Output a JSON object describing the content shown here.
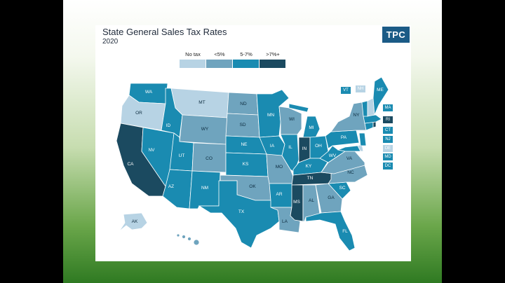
{
  "title": "State General Sales Tax Rates",
  "subtitle": "2020",
  "logo": "TPC",
  "colors": {
    "none": "#b7d3e4",
    "low": "#6fa4be",
    "mid": "#1a8bb1",
    "high": "#1b4a60",
    "background": "#000000",
    "panel": "#ffffff"
  },
  "legend": [
    {
      "label": "No tax",
      "category": "none"
    },
    {
      "label": "<5%",
      "category": "low"
    },
    {
      "label": "5-7%",
      "category": "mid"
    },
    {
      "label": ">7%+",
      "category": "high"
    }
  ],
  "states": {
    "WA": "mid",
    "OR": "none",
    "CA": "high",
    "NV": "mid",
    "ID": "mid",
    "MT": "none",
    "WY": "low",
    "UT": "mid",
    "AZ": "mid",
    "CO": "low",
    "NM": "mid",
    "ND": "low",
    "SD": "low",
    "NE": "mid",
    "KS": "mid",
    "OK": "low",
    "TX": "mid",
    "MN": "mid",
    "IA": "mid",
    "MO": "low",
    "AR": "mid",
    "LA": "low",
    "WI": "low",
    "IL": "mid",
    "MS": "high",
    "AL": "low",
    "TN": "high",
    "KY": "mid",
    "IN": "high",
    "MI": "mid",
    "OH": "mid",
    "GA": "low",
    "FL": "mid",
    "SC": "mid",
    "NC": "low",
    "VA": "low",
    "WV": "mid",
    "PA": "mid",
    "NY": "low",
    "ME": "mid",
    "AK": "none",
    "HI": "low",
    "VT": "mid",
    "NH": "none",
    "MA": "mid",
    "RI": "high",
    "CT": "mid",
    "NJ": "mid",
    "DE": "none",
    "MD": "mid",
    "DC": "mid"
  }
}
